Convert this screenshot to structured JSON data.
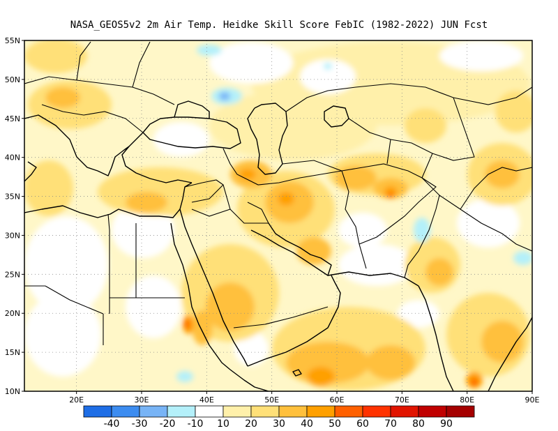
{
  "title": "NASA_GEOS5v2  2m Air Temp. Heidke Skill Score FebIC (1982-2022) JUN Fcst",
  "map": {
    "lon_range": [
      12,
      90
    ],
    "lat_range": [
      10,
      55
    ],
    "lat_ticks": [
      {
        "value": 10,
        "label": "10N"
      },
      {
        "value": 15,
        "label": "15N"
      },
      {
        "value": 20,
        "label": "20N"
      },
      {
        "value": 25,
        "label": "25N"
      },
      {
        "value": 30,
        "label": "30N"
      },
      {
        "value": 35,
        "label": "35N"
      },
      {
        "value": 40,
        "label": "40N"
      },
      {
        "value": 45,
        "label": "45N"
      },
      {
        "value": 50,
        "label": "50N"
      },
      {
        "value": 55,
        "label": "55N"
      }
    ],
    "lon_ticks": [
      {
        "value": 20,
        "label": "20E"
      },
      {
        "value": 30,
        "label": "30E"
      },
      {
        "value": 40,
        "label": "40E"
      },
      {
        "value": 50,
        "label": "50E"
      },
      {
        "value": 60,
        "label": "60E"
      },
      {
        "value": 70,
        "label": "70E"
      },
      {
        "value": 80,
        "label": "80E"
      },
      {
        "value": 90,
        "label": "90E"
      }
    ],
    "gridlines": "dotted"
  },
  "colorbar": {
    "boundaries": [
      "-40",
      "-30",
      "-20",
      "-10",
      "10",
      "20",
      "30",
      "40",
      "50",
      "60",
      "70",
      "80",
      "90"
    ],
    "colors": [
      "#1e6ee6",
      "#3c8cf0",
      "#78b4f6",
      "#b4f0fa",
      "#ffffff",
      "#fff0aa",
      "#ffe078",
      "#ffc03c",
      "#ffa000",
      "#ff6000",
      "#ff3200",
      "#e11400",
      "#c00000",
      "#a50000"
    ]
  }
}
